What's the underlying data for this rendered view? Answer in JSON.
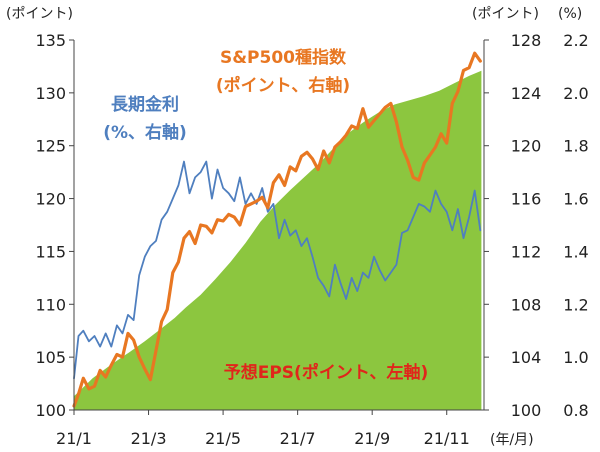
{
  "chart_data": {
    "type": "area",
    "x_ticks": [
      "21/1",
      "21/3",
      "21/5",
      "21/7",
      "21/9",
      "21/11"
    ],
    "x_unit": "(年/月)",
    "left_axis": {
      "unit": "(ポイント)",
      "ticks": [
        100,
        105,
        110,
        115,
        120,
        125,
        130,
        135
      ],
      "range": [
        100,
        135
      ]
    },
    "right_axis_index": {
      "unit": "(ポイント)",
      "ticks": [
        100,
        104,
        108,
        112,
        116,
        120,
        124,
        128
      ],
      "range": [
        100,
        128
      ]
    },
    "right_axis_rate": {
      "unit": "(%)",
      "ticks": [
        "0.8",
        "1.0",
        "1.2",
        "1.4",
        "1.6",
        "1.8",
        "2.0",
        "2.2"
      ],
      "range": [
        0.8,
        2.2
      ]
    },
    "annotations": {
      "sp500": [
        "S&P500種指数",
        "(ポイント、右軸)"
      ],
      "rate": [
        "長期金利",
        "(%、右軸)"
      ],
      "eps": [
        "予想EPS(ポイント、左軸)"
      ]
    },
    "series": [
      {
        "name": "予想EPS",
        "axis": "left",
        "color": "#8cc63f",
        "x": [
          0,
          0.5,
          1,
          1.5,
          1.9,
          2.3,
          2.7,
          3.0,
          3.4,
          3.8,
          4.2,
          4.6,
          5.0,
          5.4,
          5.8,
          6.2,
          6.6,
          7.0,
          7.4,
          7.8,
          8.2,
          8.6,
          9.0,
          9.4,
          9.8,
          10.2,
          10.6,
          10.93
        ],
        "values": [
          101.3,
          103.0,
          104.3,
          105.5,
          106.5,
          107.6,
          108.7,
          109.7,
          110.9,
          112.4,
          114.0,
          115.8,
          117.8,
          119.4,
          120.8,
          122.1,
          123.4,
          124.9,
          126.3,
          127.3,
          128.2,
          128.9,
          129.3,
          129.7,
          130.2,
          130.9,
          131.6,
          132.1
        ]
      },
      {
        "name": "長期金利",
        "axis": "right_rate",
        "color": "#4f7fbf",
        "x": [
          0,
          0.12,
          0.25,
          0.4,
          0.55,
          0.7,
          0.85,
          1.0,
          1.15,
          1.3,
          1.45,
          1.6,
          1.75,
          1.9,
          2.05,
          2.2,
          2.35,
          2.5,
          2.65,
          2.8,
          2.95,
          3.1,
          3.25,
          3.4,
          3.55,
          3.7,
          3.85,
          4.0,
          4.15,
          4.3,
          4.45,
          4.6,
          4.75,
          4.9,
          5.05,
          5.2,
          5.35,
          5.5,
          5.65,
          5.8,
          5.95,
          6.1,
          6.25,
          6.4,
          6.55,
          6.7,
          6.85,
          7.0,
          7.15,
          7.3,
          7.45,
          7.6,
          7.75,
          7.9,
          8.05,
          8.2,
          8.35,
          8.5,
          8.65,
          8.8,
          8.95,
          9.1,
          9.25,
          9.4,
          9.55,
          9.7,
          9.85,
          10.0,
          10.15,
          10.3,
          10.45,
          10.6,
          10.75,
          10.9
        ],
        "values": [
          0.92,
          1.08,
          1.1,
          1.06,
          1.08,
          1.04,
          1.09,
          1.04,
          1.12,
          1.09,
          1.16,
          1.14,
          1.31,
          1.38,
          1.42,
          1.44,
          1.52,
          1.55,
          1.6,
          1.65,
          1.74,
          1.62,
          1.68,
          1.7,
          1.74,
          1.6,
          1.71,
          1.64,
          1.62,
          1.59,
          1.68,
          1.58,
          1.62,
          1.58,
          1.64,
          1.55,
          1.58,
          1.45,
          1.52,
          1.46,
          1.48,
          1.42,
          1.45,
          1.38,
          1.3,
          1.27,
          1.23,
          1.35,
          1.28,
          1.22,
          1.3,
          1.25,
          1.32,
          1.3,
          1.38,
          1.33,
          1.29,
          1.32,
          1.35,
          1.47,
          1.48,
          1.53,
          1.58,
          1.57,
          1.55,
          1.63,
          1.58,
          1.55,
          1.48,
          1.56,
          1.45,
          1.53,
          1.63,
          1.48
        ]
      },
      {
        "name": "S&P500種指数",
        "axis": "right_index",
        "color": "#e87722",
        "x": [
          0,
          0.12,
          0.25,
          0.4,
          0.55,
          0.7,
          0.85,
          1.0,
          1.15,
          1.3,
          1.45,
          1.6,
          1.75,
          1.9,
          2.05,
          2.2,
          2.35,
          2.5,
          2.65,
          2.8,
          2.95,
          3.1,
          3.25,
          3.4,
          3.55,
          3.7,
          3.85,
          4.0,
          4.15,
          4.3,
          4.45,
          4.6,
          4.75,
          4.9,
          5.05,
          5.2,
          5.35,
          5.5,
          5.65,
          5.8,
          5.95,
          6.1,
          6.25,
          6.4,
          6.55,
          6.7,
          6.85,
          7.0,
          7.15,
          7.3,
          7.45,
          7.6,
          7.75,
          7.9,
          8.05,
          8.2,
          8.35,
          8.5,
          8.65,
          8.8,
          8.95,
          9.1,
          9.25,
          9.4,
          9.55,
          9.7,
          9.85,
          10.0,
          10.15,
          10.3,
          10.45,
          10.6,
          10.75,
          10.9
        ],
        "values": [
          100.3,
          101.2,
          102.4,
          101.6,
          101.8,
          103.0,
          102.5,
          103.4,
          104.2,
          104.0,
          105.8,
          105.3,
          104.0,
          103.1,
          102.3,
          104.5,
          106.7,
          107.6,
          110.4,
          111.2,
          113.0,
          113.5,
          112.6,
          114.0,
          113.9,
          113.4,
          114.4,
          114.3,
          114.8,
          114.6,
          114.0,
          115.4,
          115.6,
          115.8,
          116.1,
          115.3,
          117.2,
          117.8,
          117.0,
          118.4,
          118.1,
          119.2,
          119.5,
          119.0,
          118.2,
          119.6,
          118.7,
          119.9,
          120.3,
          120.8,
          121.5,
          121.3,
          122.8,
          121.4,
          121.9,
          122.4,
          122.9,
          123.2,
          121.8,
          119.9,
          118.9,
          117.6,
          117.4,
          118.7,
          119.3,
          119.9,
          120.9,
          120.2,
          123.2,
          124.1,
          125.7,
          125.9,
          127.0,
          126.4
        ]
      }
    ]
  }
}
